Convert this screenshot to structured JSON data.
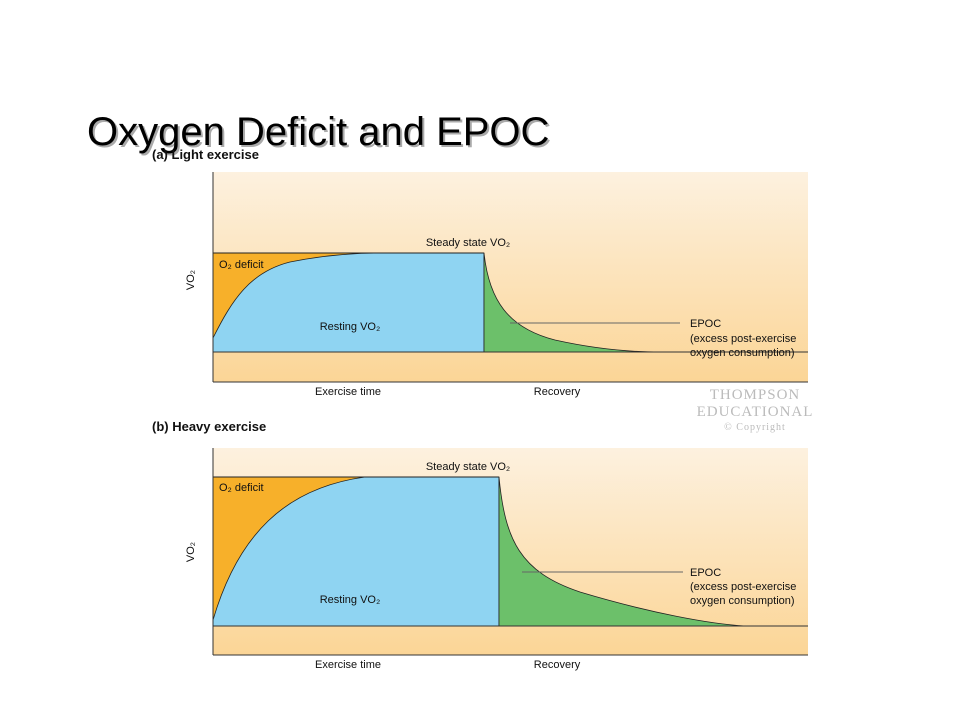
{
  "title": "Oxygen Deficit and EPOC",
  "panels": [
    {
      "label": "(a) Light exercise",
      "y_axis": "VO₂",
      "o2_deficit": "O₂ deficit",
      "steady_state": "Steady state VO₂",
      "resting": "Resting VO₂",
      "epoc": "EPOC",
      "epoc_note": [
        "(excess post-exercise",
        "oxygen consumption)"
      ],
      "x_exercise": "Exercise time",
      "x_recovery": "Recovery"
    },
    {
      "label": "(b) Heavy exercise",
      "y_axis": "VO₂",
      "o2_deficit": "O₂ deficit",
      "steady_state": "Steady state VO₂",
      "resting": "Resting VO₂",
      "epoc": "EPOC",
      "epoc_note": [
        "(excess post-exercise",
        "oxygen consumption)"
      ],
      "x_exercise": "Exercise time",
      "x_recovery": "Recovery"
    }
  ],
  "watermark": [
    "THOMPSON",
    "EDUCATIONAL",
    "© Copyright"
  ]
}
